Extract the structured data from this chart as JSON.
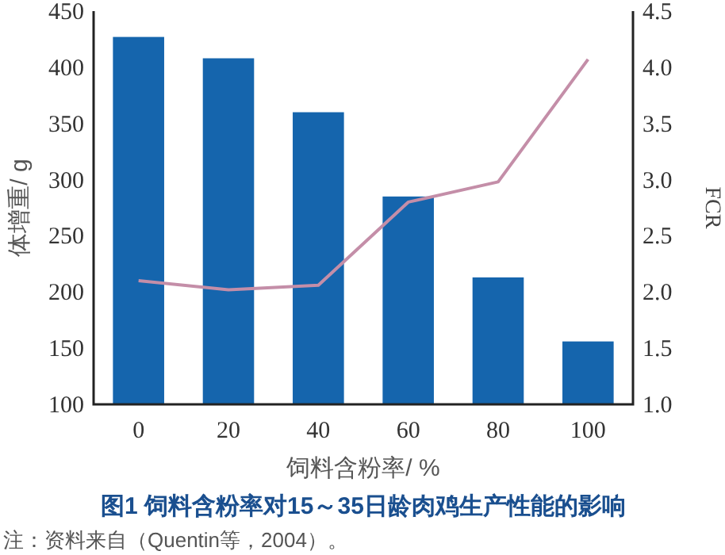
{
  "chart_data": {
    "type": "bar",
    "title": "图1  饲料含粉率对15～35日龄肉鸡生产性能的影响",
    "xlabel": "饲料含粉率/ %",
    "ylabel": "体增重/ g",
    "y2label": "FCR",
    "categories": [
      "0",
      "20",
      "40",
      "60",
      "80",
      "100"
    ],
    "series": [
      {
        "color": "#1565ad",
        "values": [
          427,
          408,
          360,
          285,
          213,
          156
        ]
      },
      {
        "type": "line",
        "axis": "y2",
        "color": "#c48ea8",
        "values": [
          2.1,
          2.02,
          2.06,
          2.8,
          2.98,
          4.07
        ]
      }
    ],
    "ylim": [
      100,
      450
    ],
    "yticks": [
      100,
      150,
      200,
      250,
      300,
      350,
      400,
      450
    ],
    "y2lim": [
      1.0,
      4.5
    ],
    "y2ticks": [
      {
        "value": 1.0,
        "label": "1.0"
      },
      {
        "value": 1.5,
        "label": "1.5"
      },
      {
        "value": 2.0,
        "label": "2.0"
      },
      {
        "value": 2.5,
        "label": "2.5"
      },
      {
        "value": 3.0,
        "label": "3.0"
      },
      {
        "value": 3.5,
        "label": "3.5"
      },
      {
        "value": 4.0,
        "label": "4.0"
      },
      {
        "value": 4.5,
        "label": "4.5"
      }
    ],
    "annotations": [
      "注：资料来自（Quentin等，2004）。"
    ]
  }
}
